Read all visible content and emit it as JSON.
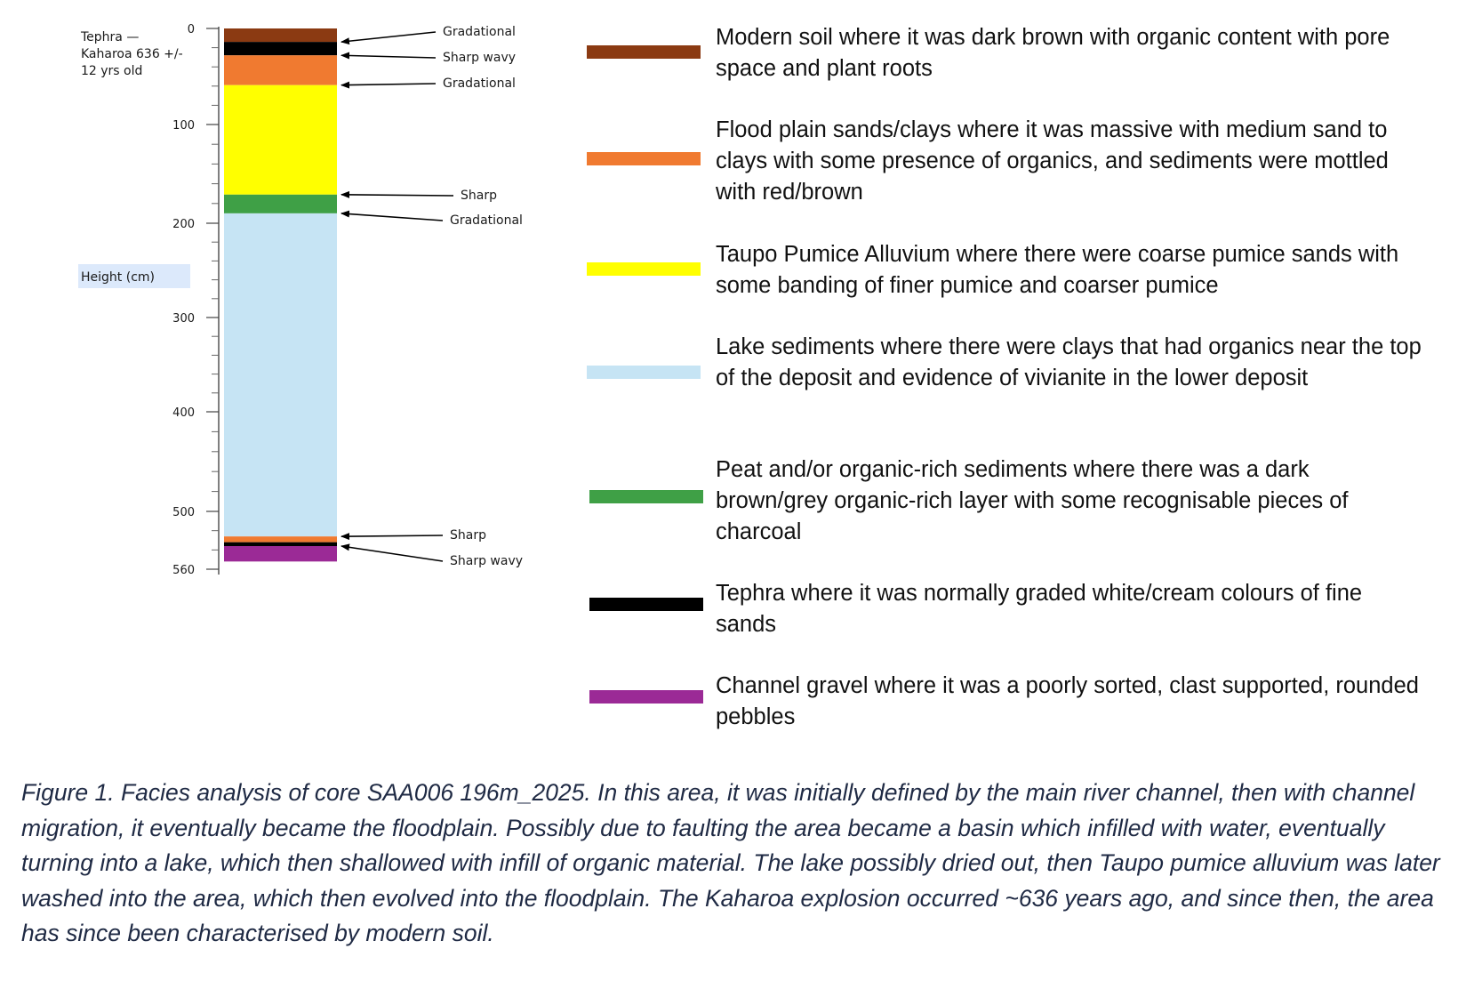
{
  "column": {
    "tephra_note": [
      "Tephra —",
      "Kaharoa 636 +/-",
      "12 yrs old"
    ],
    "axis_label": "Height (cm)",
    "ticks": [
      0,
      100,
      200,
      300,
      400,
      500,
      560
    ],
    "layers": [
      {
        "unit": "Modern soil",
        "top_cm": 0,
        "bottom_cm": 14,
        "color": "#8b3a12"
      },
      {
        "unit": "Tephra",
        "top_cm": 14,
        "bottom_cm": 28,
        "color": "#000000"
      },
      {
        "unit": "Flood plain sands/clays",
        "top_cm": 28,
        "bottom_cm": 59,
        "color": "#f07a30"
      },
      {
        "unit": "Taupo Pumice Alluvium",
        "top_cm": 59,
        "bottom_cm": 171,
        "color": "#ffff00"
      },
      {
        "unit": "Peat and/or organic-rich sediments",
        "top_cm": 171,
        "bottom_cm": 190,
        "color": "#3fa046"
      },
      {
        "unit": "Lake sediments",
        "top_cm": 190,
        "bottom_cm": 526,
        "color": "#c6e4f4"
      },
      {
        "unit": "Flood plain sands/clays",
        "top_cm": 526,
        "bottom_cm": 532,
        "color": "#f07a30"
      },
      {
        "unit": "Tephra",
        "top_cm": 532,
        "bottom_cm": 536,
        "color": "#000000"
      },
      {
        "unit": "Channel gravel",
        "top_cm": 536,
        "bottom_cm": 552,
        "color": "#9b2a96"
      }
    ],
    "contacts": [
      {
        "label": "Gradational",
        "depth_cm": 14
      },
      {
        "label": "Sharp wavy",
        "depth_cm": 28
      },
      {
        "label": "Gradational",
        "depth_cm": 59
      },
      {
        "label": "Sharp",
        "depth_cm": 171
      },
      {
        "label": "Gradational",
        "depth_cm": 190
      },
      {
        "label": "Sharp",
        "depth_cm": 526
      },
      {
        "label": "Sharp wavy",
        "depth_cm": 536
      }
    ]
  },
  "legend": [
    {
      "color": "#8b3a12",
      "text": "Modern soil where it was dark brown with organic content with pore space and plant roots"
    },
    {
      "color": "#f07a30",
      "text": "Flood plain sands/clays where it was massive with medium sand to clays with some presence of organics, and sediments were mottled with red/brown"
    },
    {
      "color": "#ffff00",
      "text": "Taupo Pumice Alluvium where there were coarse pumice sands with some banding of finer pumice and coarser pumice"
    },
    {
      "color": "#c6e4f4",
      "text": "Lake sediments where there were clays that had organics near the top of the deposit and evidence of vivianite in the lower deposit"
    },
    {
      "color": "#3fa046",
      "text": "Peat and/or organic-rich sediments where there was a dark brown/grey organic-rich layer with some recognisable pieces of charcoal"
    },
    {
      "color": "#000000",
      "text": "Tephra where it was normally graded white/cream colours of fine sands"
    },
    {
      "color": "#9b2a96",
      "text": "Channel gravel where it was a poorly sorted, clast supported, rounded pebbles"
    }
  ],
  "caption": "Figure 1. Facies analysis of core SAA006 196m_2025. In this area, it was initially defined by the main river channel, then with channel migration, it eventually became the floodplain. Possibly due to faulting the area became a basin which infilled with water, eventually turning into a lake, which then shallowed with infill of organic material. The lake possibly dried out, then Taupo pumice alluvium was later washed into the area, which then evolved into the floodplain. The Kaharoa explosion occurred ~636 years ago, and since then, the area has since been characterised by modern soil."
}
